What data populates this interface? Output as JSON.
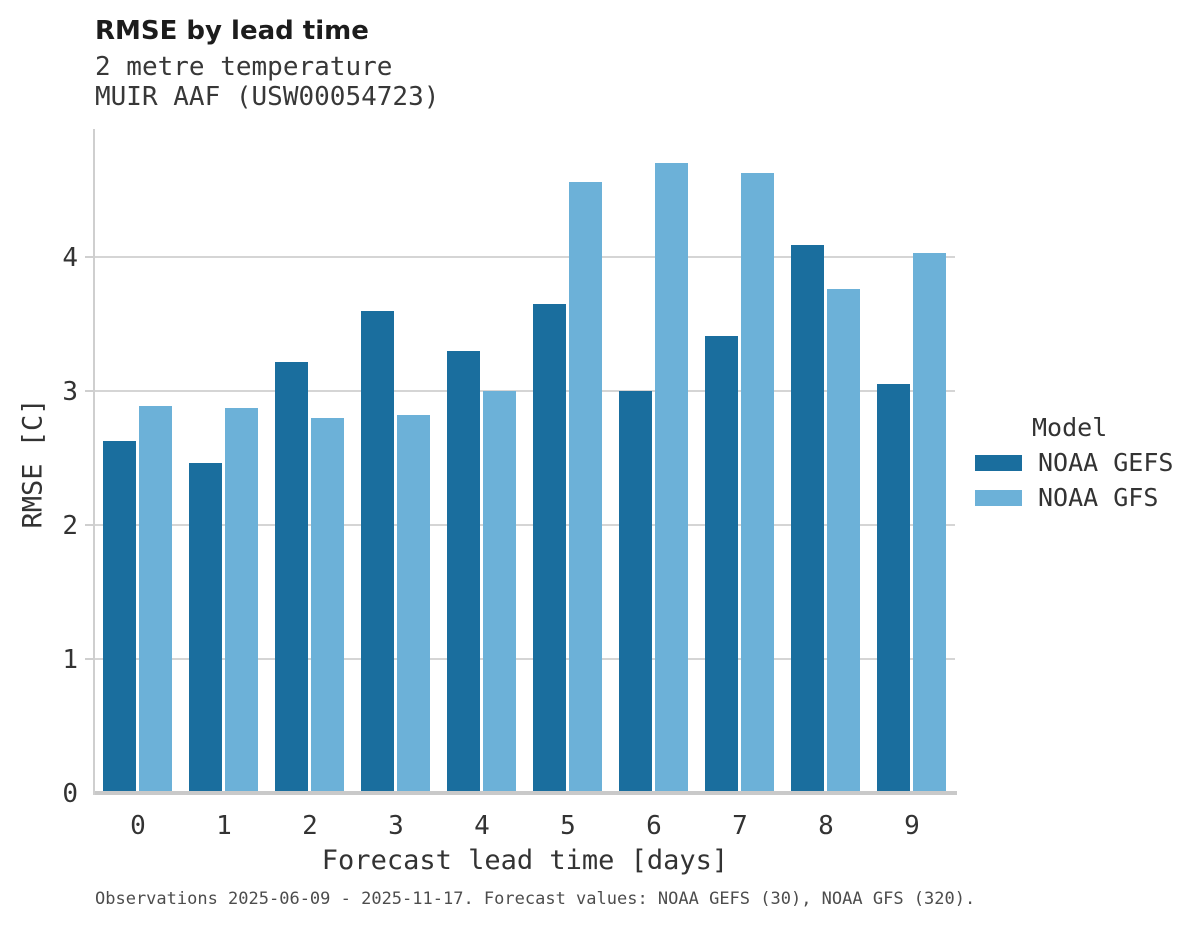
{
  "title": "RMSE by lead time",
  "subtitle_line1": "2 metre temperature",
  "subtitle_line2": "MUIR AAF (USW00054723)",
  "footer": "Observations 2025-06-09 - 2025-11-17. Forecast values: NOAA GEFS (30), NOAA GFS (320).",
  "colors": {
    "gefs_dark_blue": "#1a6e9e",
    "gfs_light_blue": "#6cb1d8",
    "gridline": "#d5d5d5",
    "baseline": "#c9c9c9",
    "text": "#333333"
  },
  "legend": {
    "title": "Model",
    "items": [
      {
        "label": "NOAA GEFS",
        "color": "#1a6e9e"
      },
      {
        "label": "NOAA GFS",
        "color": "#6cb1d8"
      }
    ]
  },
  "chart_data": {
    "type": "bar",
    "title": "RMSE by lead time",
    "subtitle": [
      "2 metre temperature",
      "MUIR AAF (USW00054723)"
    ],
    "categories": [
      "0",
      "1",
      "2",
      "3",
      "4",
      "5",
      "6",
      "7",
      "8",
      "9"
    ],
    "series": [
      {
        "name": "NOAA GEFS",
        "color": "#1a6e9e",
        "values": [
          2.63,
          2.46,
          3.22,
          3.6,
          3.3,
          3.65,
          3.0,
          3.41,
          4.09,
          3.05
        ]
      },
      {
        "name": "NOAA GFS",
        "color": "#6cb1d8",
        "values": [
          2.89,
          2.87,
          2.8,
          2.82,
          3.0,
          4.56,
          4.7,
          4.63,
          3.76,
          4.03
        ]
      }
    ],
    "xlabel": "Forecast lead time [days]",
    "ylabel": "RMSE [C]",
    "ylim": [
      0,
      4.96
    ],
    "yticks": [
      0,
      1,
      2,
      3,
      4
    ],
    "grid": true,
    "legend_position": "right-center"
  }
}
